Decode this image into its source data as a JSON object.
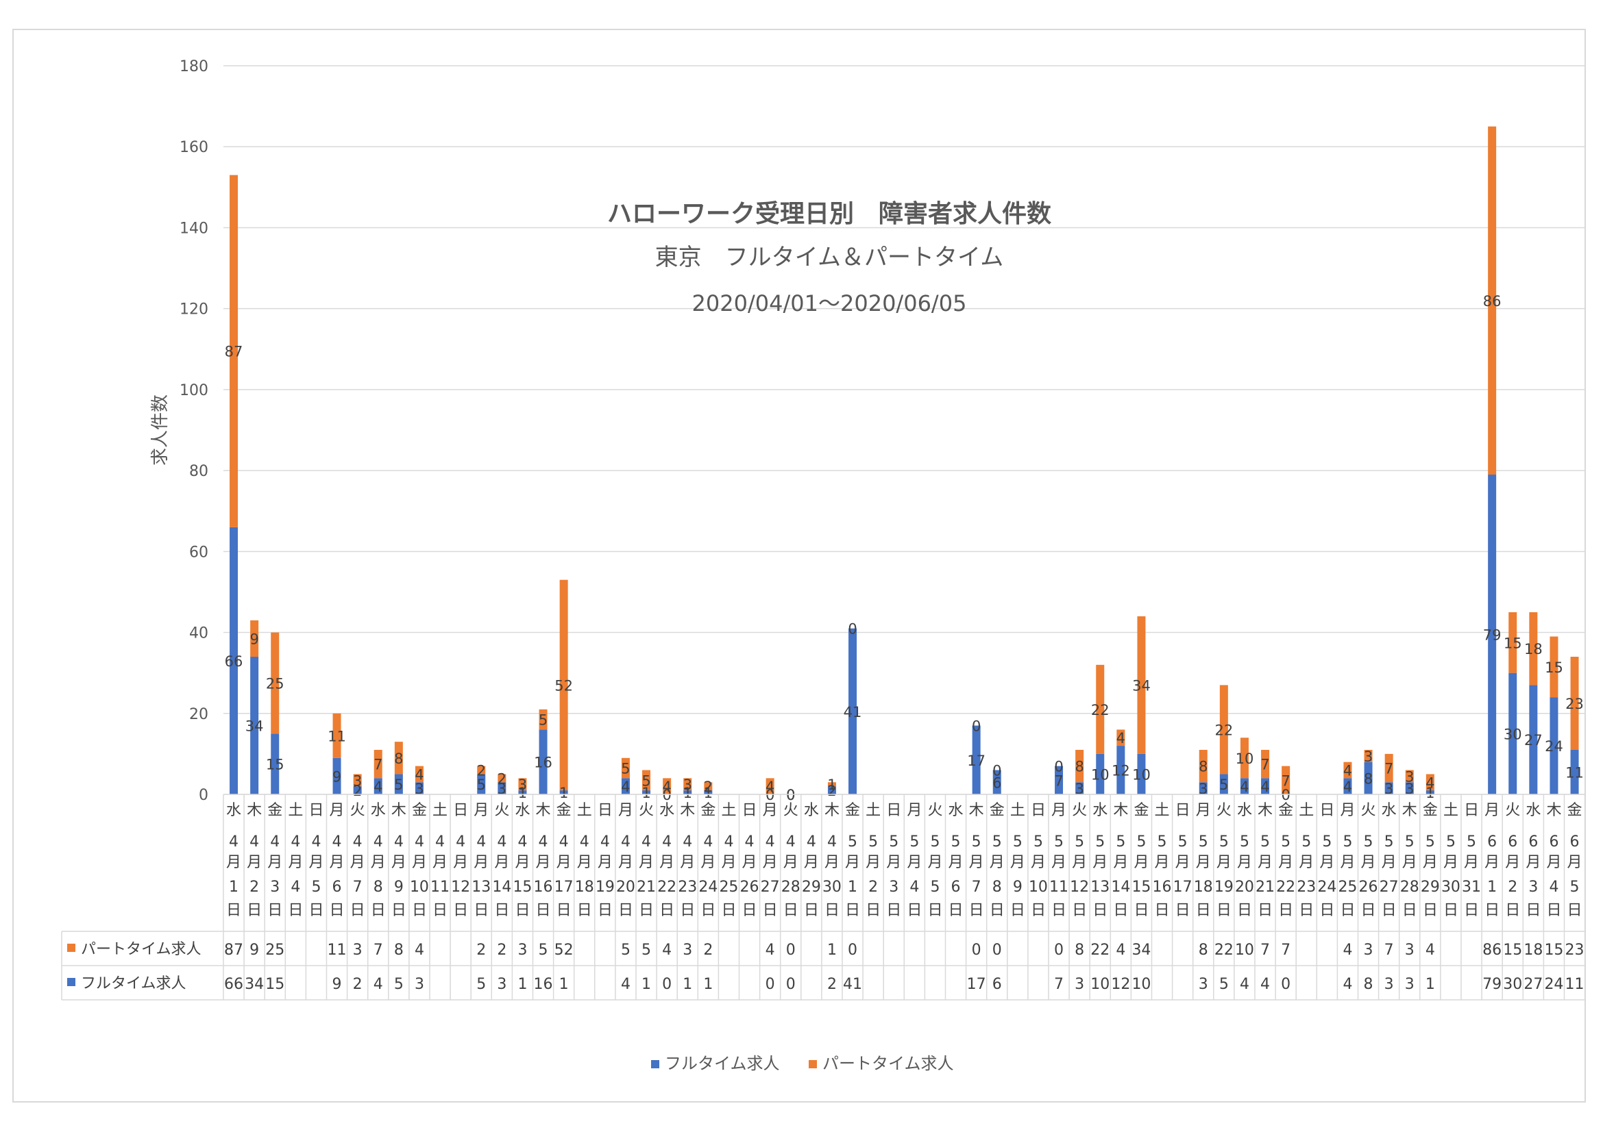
{
  "chart_data": {
    "type": "bar",
    "stacked": true,
    "title": "ハローワーク受理日別　障害者求人件数",
    "subtitle": "東京　フルタイム＆パートタイム",
    "date_range": "2020/04/01～2020/06/05",
    "ylabel": "求人件数",
    "ylim": [
      0,
      180
    ],
    "yticks": [
      "0",
      "20",
      "40",
      "60",
      "80",
      "100",
      "120",
      "140",
      "160",
      "180"
    ],
    "grid": true,
    "legend": {
      "position": "bottom"
    },
    "categories": [
      {
        "day": "水",
        "month": "4月",
        "date": "1日"
      },
      {
        "day": "木",
        "month": "4月",
        "date": "2日"
      },
      {
        "day": "金",
        "month": "4月",
        "date": "3日"
      },
      {
        "day": "土",
        "month": "4月",
        "date": "4日"
      },
      {
        "day": "日",
        "month": "4月",
        "date": "5日"
      },
      {
        "day": "月",
        "month": "4月",
        "date": "6日"
      },
      {
        "day": "火",
        "month": "4月",
        "date": "7日"
      },
      {
        "day": "水",
        "month": "4月",
        "date": "8日"
      },
      {
        "day": "木",
        "month": "4月",
        "date": "9日"
      },
      {
        "day": "金",
        "month": "4月",
        "date": "10日"
      },
      {
        "day": "土",
        "month": "4月",
        "date": "11日"
      },
      {
        "day": "日",
        "month": "4月",
        "date": "12日"
      },
      {
        "day": "月",
        "month": "4月",
        "date": "13日"
      },
      {
        "day": "火",
        "month": "4月",
        "date": "14日"
      },
      {
        "day": "水",
        "month": "4月",
        "date": "15日"
      },
      {
        "day": "木",
        "month": "4月",
        "date": "16日"
      },
      {
        "day": "金",
        "month": "4月",
        "date": "17日"
      },
      {
        "day": "土",
        "month": "4月",
        "date": "18日"
      },
      {
        "day": "日",
        "month": "4月",
        "date": "19日"
      },
      {
        "day": "月",
        "month": "4月",
        "date": "20日"
      },
      {
        "day": "火",
        "month": "4月",
        "date": "21日"
      },
      {
        "day": "水",
        "month": "4月",
        "date": "22日"
      },
      {
        "day": "木",
        "month": "4月",
        "date": "23日"
      },
      {
        "day": "金",
        "month": "4月",
        "date": "24日"
      },
      {
        "day": "土",
        "month": "4月",
        "date": "25日"
      },
      {
        "day": "日",
        "month": "4月",
        "date": "26日"
      },
      {
        "day": "月",
        "month": "4月",
        "date": "27日"
      },
      {
        "day": "火",
        "month": "4月",
        "date": "28日"
      },
      {
        "day": "水",
        "month": "4月",
        "date": "29日"
      },
      {
        "day": "木",
        "month": "4月",
        "date": "30日"
      },
      {
        "day": "金",
        "month": "5月",
        "date": "1日"
      },
      {
        "day": "土",
        "month": "5月",
        "date": "2日"
      },
      {
        "day": "日",
        "month": "5月",
        "date": "3日"
      },
      {
        "day": "月",
        "month": "5月",
        "date": "4日"
      },
      {
        "day": "火",
        "month": "5月",
        "date": "5日"
      },
      {
        "day": "水",
        "month": "5月",
        "date": "6日"
      },
      {
        "day": "木",
        "month": "5月",
        "date": "7日"
      },
      {
        "day": "金",
        "month": "5月",
        "date": "8日"
      },
      {
        "day": "土",
        "month": "5月",
        "date": "9日"
      },
      {
        "day": "日",
        "month": "5月",
        "date": "10日"
      },
      {
        "day": "月",
        "month": "5月",
        "date": "11日"
      },
      {
        "day": "火",
        "month": "5月",
        "date": "12日"
      },
      {
        "day": "水",
        "month": "5月",
        "date": "13日"
      },
      {
        "day": "木",
        "month": "5月",
        "date": "14日"
      },
      {
        "day": "金",
        "month": "5月",
        "date": "15日"
      },
      {
        "day": "土",
        "month": "5月",
        "date": "16日"
      },
      {
        "day": "日",
        "month": "5月",
        "date": "17日"
      },
      {
        "day": "月",
        "month": "5月",
        "date": "18日"
      },
      {
        "day": "火",
        "month": "5月",
        "date": "19日"
      },
      {
        "day": "水",
        "month": "5月",
        "date": "20日"
      },
      {
        "day": "木",
        "month": "5月",
        "date": "21日"
      },
      {
        "day": "金",
        "month": "5月",
        "date": "22日"
      },
      {
        "day": "土",
        "month": "5月",
        "date": "23日"
      },
      {
        "day": "日",
        "month": "5月",
        "date": "24日"
      },
      {
        "day": "月",
        "month": "5月",
        "date": "25日"
      },
      {
        "day": "火",
        "month": "5月",
        "date": "26日"
      },
      {
        "day": "水",
        "month": "5月",
        "date": "27日"
      },
      {
        "day": "木",
        "month": "5月",
        "date": "28日"
      },
      {
        "day": "金",
        "month": "5月",
        "date": "29日"
      },
      {
        "day": "土",
        "month": "5月",
        "date": "30日"
      },
      {
        "day": "日",
        "month": "5月",
        "date": "31日"
      },
      {
        "day": "月",
        "month": "6月",
        "date": "1日"
      },
      {
        "day": "火",
        "month": "6月",
        "date": "2日"
      },
      {
        "day": "水",
        "month": "6月",
        "date": "3日"
      },
      {
        "day": "木",
        "month": "6月",
        "date": "4日"
      },
      {
        "day": "金",
        "month": "6月",
        "date": "5日"
      }
    ],
    "series": [
      {
        "name": "フルタイム求人",
        "color": "#4472c4",
        "values": [
          66,
          34,
          15,
          null,
          null,
          9,
          2,
          4,
          5,
          3,
          null,
          null,
          5,
          3,
          1,
          16,
          1,
          null,
          null,
          4,
          1,
          0,
          1,
          1,
          null,
          null,
          0,
          0,
          null,
          2,
          41,
          null,
          null,
          null,
          null,
          null,
          17,
          6,
          null,
          null,
          7,
          3,
          10,
          12,
          10,
          null,
          null,
          3,
          5,
          4,
          4,
          0,
          null,
          null,
          4,
          8,
          3,
          3,
          1,
          null,
          null,
          79,
          30,
          27,
          24,
          11
        ]
      },
      {
        "name": "パートタイム求人",
        "color": "#ed7d31",
        "values": [
          87,
          9,
          25,
          null,
          null,
          11,
          3,
          7,
          8,
          4,
          null,
          null,
          2,
          2,
          3,
          5,
          52,
          null,
          null,
          5,
          5,
          4,
          3,
          2,
          null,
          null,
          4,
          0,
          null,
          1,
          0,
          null,
          null,
          null,
          null,
          null,
          0,
          0,
          null,
          null,
          0,
          8,
          22,
          4,
          34,
          null,
          null,
          8,
          22,
          10,
          7,
          7,
          null,
          null,
          4,
          3,
          7,
          3,
          4,
          null,
          null,
          86,
          15,
          18,
          15,
          23
        ]
      }
    ]
  }
}
